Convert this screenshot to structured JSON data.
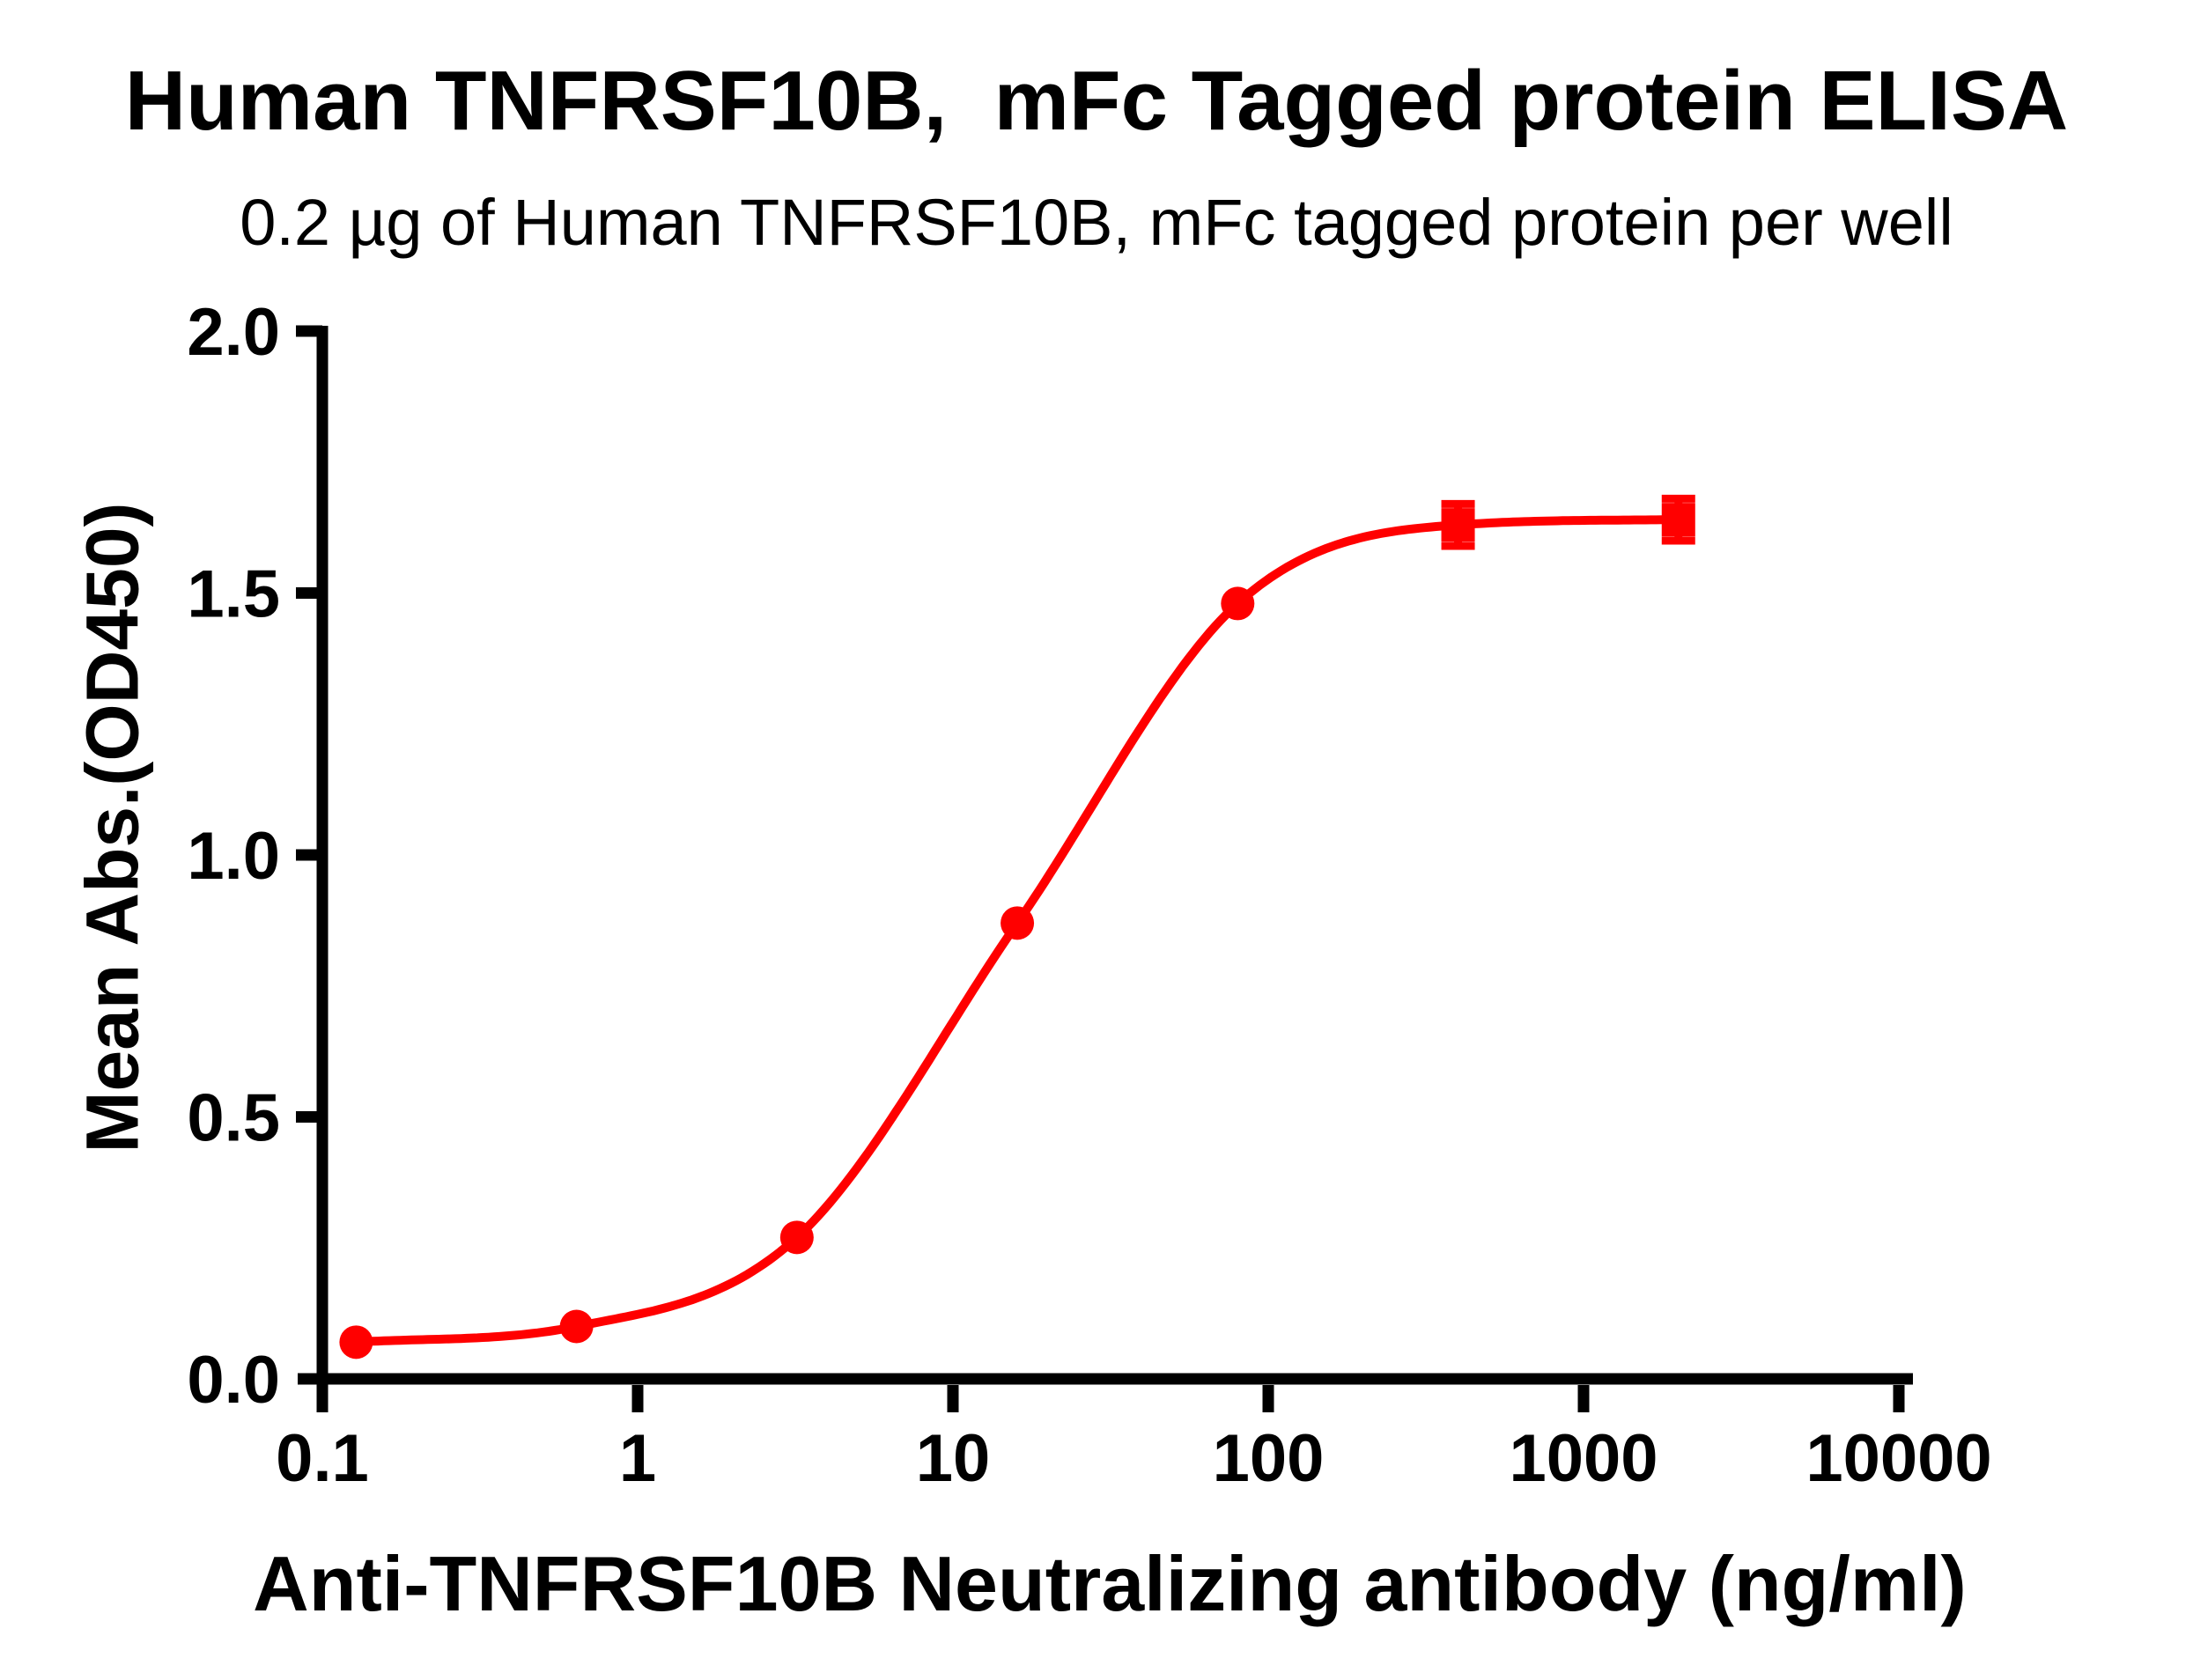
{
  "title": "Human TNFRSF10B,  mFc Tagged protein ELISA",
  "subtitle": "0.2 µg of Human TNFRSF10B, mFc tagged protein per well",
  "chart_data": {
    "type": "line",
    "title": "Human TNFRSF10B,  mFc Tagged protein ELISA",
    "subtitle": "0.2 µg of Human TNFRSF10B, mFc tagged protein per well",
    "xlabel": "Anti-TNFRSF10B Neutralizing antibody (ng/ml)",
    "ylabel": "Mean Abs.(OD450)",
    "x_scale": "log",
    "xlim": [
      0.1,
      10000
    ],
    "ylim": [
      0.0,
      2.0
    ],
    "x_tick_values": [
      0.1,
      1,
      10,
      100,
      1000,
      10000
    ],
    "x_tick_labels": [
      "0.1",
      "1",
      "10",
      "100",
      "1000",
      "10000"
    ],
    "y_tick_values": [
      0.0,
      0.5,
      1.0,
      1.5,
      2.0
    ],
    "y_tick_labels": [
      "0.0",
      "0.5",
      "1.0",
      "1.5",
      "2.0"
    ],
    "grid": false,
    "legend": "none",
    "series": [
      {
        "name": "Anti-TNFRSF10B Neutralizing antibody",
        "color": "#FF0000",
        "line_width": 10,
        "points": [
          {
            "x": 0.128,
            "y": 0.07,
            "marker": "circle"
          },
          {
            "x": 0.64,
            "y": 0.1,
            "marker": "circle"
          },
          {
            "x": 3.2,
            "y": 0.27,
            "marker": "circle"
          },
          {
            "x": 16,
            "y": 0.87,
            "marker": "circle"
          },
          {
            "x": 80,
            "y": 1.48,
            "marker": "circle"
          },
          {
            "x": 400,
            "y": 1.63,
            "marker": "square",
            "error": 0.04
          },
          {
            "x": 2000,
            "y": 1.64,
            "marker": "square",
            "error": 0.04
          }
        ]
      }
    ]
  },
  "colors": {
    "accent": "#FF0000",
    "axis": "#000000",
    "background": "#FFFFFF"
  }
}
